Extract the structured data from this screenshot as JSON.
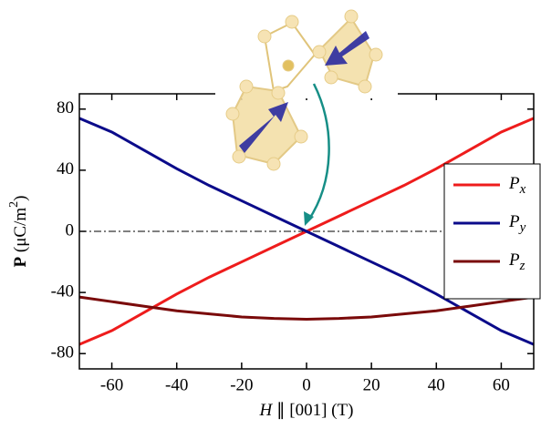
{
  "chart_data": {
    "type": "line",
    "x": [
      -70,
      -60,
      -50,
      -40,
      -30,
      -20,
      -10,
      0,
      10,
      20,
      30,
      40,
      50,
      60,
      70
    ],
    "series": [
      {
        "name": "Px",
        "color": "#ee1c1c",
        "values": [
          -74,
          -65,
          -53,
          -41,
          -30,
          -20,
          -10,
          0,
          10,
          20,
          30,
          41,
          53,
          65,
          74
        ]
      },
      {
        "name": "Py",
        "color": "#0b0b8a",
        "values": [
          74,
          65,
          53,
          41,
          30,
          20,
          10,
          0,
          -10,
          -20,
          -30,
          -41,
          -53,
          -65,
          -74
        ]
      },
      {
        "name": "Pz",
        "color": "#7a0a0a",
        "values": [
          -43,
          -46,
          -49,
          -52,
          -54,
          -56,
          -57,
          -57.5,
          -57,
          -56,
          -54,
          -52,
          -49,
          -46,
          -43
        ]
      }
    ],
    "xlabel": "H ∥ [001] (T)",
    "ylabel": "P (μC/m2)",
    "xlim": [
      -70,
      70
    ],
    "xticks": [
      -60,
      -40,
      -20,
      0,
      20,
      40,
      60
    ],
    "ylim": [
      -90,
      90
    ],
    "yticks": [
      -80,
      -40,
      0,
      40,
      80
    ],
    "hline": 0,
    "legend": "right"
  }
}
